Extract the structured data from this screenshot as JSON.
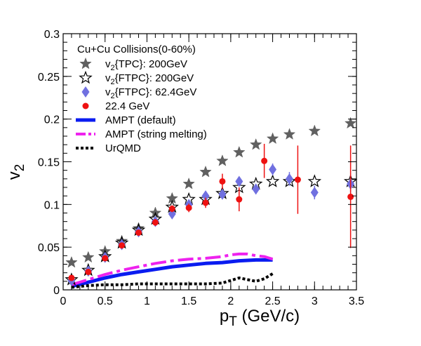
{
  "chart_data": {
    "type": "scatter",
    "title": "",
    "xlabel_main": "p",
    "xlabel_sub": "T",
    "xlabel_rest": " (GeV/c)",
    "ylabel_main": "v",
    "ylabel_sub": "2",
    "xlim": [
      0,
      3.5
    ],
    "ylim": [
      0,
      0.3
    ],
    "x_ticks": [
      0,
      0.5,
      1,
      1.5,
      2,
      2.5,
      3,
      3.5
    ],
    "x_tick_labels": [
      "0",
      "0.5",
      "1",
      "1.5",
      "2",
      "2.5",
      "3",
      "3.5"
    ],
    "y_ticks": [
      0,
      0.05,
      0.1,
      0.15,
      0.2,
      0.25,
      0.3
    ],
    "y_tick_labels": [
      "0",
      "0.05",
      "0.1",
      "0.15",
      "0.2",
      "0.25",
      "0.3"
    ],
    "legend_position": "top-left",
    "legend_header": "Cu+Cu Collisions(0-60%)",
    "series": [
      {
        "name": "v2{TPC}: 200GeV",
        "label_parts": [
          "v",
          "2",
          "{TPC}: 200GeV"
        ],
        "marker": "star-filled",
        "color": "#606060",
        "points": [
          [
            0.1,
            0.032
          ],
          [
            0.3,
            0.038
          ],
          [
            0.5,
            0.045
          ],
          [
            0.7,
            0.057
          ],
          [
            0.9,
            0.072
          ],
          [
            1.1,
            0.09
          ],
          [
            1.3,
            0.107
          ],
          [
            1.5,
            0.124
          ],
          [
            1.7,
            0.138
          ],
          [
            1.9,
            0.151
          ],
          [
            2.1,
            0.161
          ],
          [
            2.3,
            0.17
          ],
          [
            2.5,
            0.177
          ],
          [
            2.7,
            0.182
          ],
          [
            3.0,
            0.186
          ],
          [
            3.43,
            0.195
          ]
        ]
      },
      {
        "name": "v2{FTPC}: 200GeV",
        "label_parts": [
          "v",
          "2",
          "{FTPC}: 200GeV"
        ],
        "marker": "star-open",
        "color": "#000000",
        "points": [
          [
            0.1,
            0.012
          ],
          [
            0.3,
            0.023
          ],
          [
            0.5,
            0.039
          ],
          [
            0.7,
            0.055
          ],
          [
            0.9,
            0.07
          ],
          [
            1.1,
            0.083
          ],
          [
            1.3,
            0.097
          ],
          [
            1.5,
            0.106
          ],
          [
            1.7,
            0.106
          ],
          [
            1.9,
            0.113
          ],
          [
            2.1,
            0.12
          ],
          [
            2.3,
            0.124
          ],
          [
            2.5,
            0.127
          ],
          [
            2.7,
            0.127
          ],
          [
            3.0,
            0.127
          ],
          [
            3.43,
            0.127
          ]
        ]
      },
      {
        "name": "v2{FTPC}: 62.4GeV",
        "label_parts": [
          "v",
          "2",
          "{FTPC}: 62.4GeV"
        ],
        "marker": "diamond",
        "color": "#7070e0",
        "points": [
          [
            0.1,
            0.011
          ],
          [
            0.3,
            0.022
          ],
          [
            0.5,
            0.038
          ],
          [
            0.7,
            0.053
          ],
          [
            0.9,
            0.068
          ],
          [
            1.1,
            0.08
          ],
          [
            1.3,
            0.089
          ],
          [
            1.5,
            0.1
          ],
          [
            1.7,
            0.11
          ],
          [
            1.9,
            0.112
          ],
          [
            2.1,
            0.127
          ],
          [
            2.3,
            0.118
          ],
          [
            2.5,
            0.141
          ],
          [
            2.7,
            0.13
          ],
          [
            3.0,
            0.114
          ],
          [
            3.43,
            0.124
          ]
        ],
        "errors": [
          0.002,
          0.002,
          0.002,
          0.002,
          0.003,
          0.003,
          0.003,
          0.004,
          0.004,
          0.005,
          0.005,
          0.006,
          0.007,
          0.008,
          0.008,
          0.01
        ]
      },
      {
        "name": "22.4 GeV",
        "label_parts": [
          "22.4 GeV",
          "",
          ""
        ],
        "marker": "circle",
        "color": "#ee1111",
        "points": [
          [
            0.1,
            0.014
          ],
          [
            0.3,
            0.021
          ],
          [
            0.5,
            0.037
          ],
          [
            0.7,
            0.052
          ],
          [
            0.9,
            0.067
          ],
          [
            1.1,
            0.079
          ],
          [
            1.3,
            0.095
          ],
          [
            1.5,
            0.096
          ],
          [
            1.7,
            0.102
          ],
          [
            1.9,
            0.127
          ],
          [
            2.1,
            0.106
          ],
          [
            2.4,
            0.151
          ],
          [
            2.8,
            0.129
          ],
          [
            3.43,
            0.109
          ]
        ],
        "errors": [
          0.002,
          0.002,
          0.002,
          0.003,
          0.003,
          0.004,
          0.004,
          0.005,
          0.006,
          0.009,
          0.014,
          0.02,
          0.04,
          0.06
        ]
      },
      {
        "name": "AMPT (default)",
        "label_parts": [
          "AMPT (default)",
          "",
          ""
        ],
        "marker": "line-solid",
        "color": "#0a1cf0",
        "points": [
          [
            0.1,
            0.004
          ],
          [
            0.3,
            0.009
          ],
          [
            0.5,
            0.014
          ],
          [
            0.7,
            0.018
          ],
          [
            0.9,
            0.021
          ],
          [
            1.1,
            0.024
          ],
          [
            1.3,
            0.027
          ],
          [
            1.5,
            0.029
          ],
          [
            1.7,
            0.031
          ],
          [
            1.9,
            0.032
          ],
          [
            2.1,
            0.034
          ],
          [
            2.3,
            0.035
          ],
          [
            2.5,
            0.035
          ]
        ]
      },
      {
        "name": "AMPT (string melting)",
        "label_parts": [
          "AMPT (string melting)",
          "",
          ""
        ],
        "marker": "line-dashdot",
        "color": "#ee22ee",
        "points": [
          [
            0.1,
            0.006
          ],
          [
            0.3,
            0.012
          ],
          [
            0.5,
            0.018
          ],
          [
            0.7,
            0.023
          ],
          [
            0.9,
            0.027
          ],
          [
            1.1,
            0.031
          ],
          [
            1.3,
            0.034
          ],
          [
            1.5,
            0.036
          ],
          [
            1.7,
            0.037
          ],
          [
            1.9,
            0.039
          ],
          [
            2.0,
            0.041
          ],
          [
            2.1,
            0.042
          ],
          [
            2.2,
            0.042
          ],
          [
            2.3,
            0.04
          ],
          [
            2.4,
            0.039
          ],
          [
            2.5,
            0.036
          ]
        ]
      },
      {
        "name": "UrQMD",
        "label_parts": [
          "UrQMD",
          "",
          ""
        ],
        "marker": "line-dotted",
        "color": "#000000",
        "points": [
          [
            0.1,
            0.003
          ],
          [
            0.3,
            0.005
          ],
          [
            0.5,
            0.006
          ],
          [
            0.7,
            0.006
          ],
          [
            0.9,
            0.007
          ],
          [
            1.1,
            0.007
          ],
          [
            1.3,
            0.007
          ],
          [
            1.5,
            0.007
          ],
          [
            1.7,
            0.007
          ],
          [
            1.9,
            0.008
          ],
          [
            2.0,
            0.011
          ],
          [
            2.1,
            0.014
          ],
          [
            2.2,
            0.012
          ],
          [
            2.3,
            0.01
          ],
          [
            2.4,
            0.013
          ],
          [
            2.5,
            0.019
          ]
        ]
      }
    ]
  }
}
